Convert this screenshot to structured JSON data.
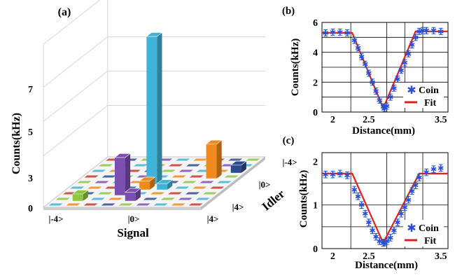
{
  "chart_data": [
    {
      "panel": "(a)",
      "type": "bar3d",
      "ylabel": "Counts(kHz)",
      "xlabel": "Signal",
      "zlabel": "Idler",
      "yticks": [
        "0",
        "3",
        "5",
        "7"
      ],
      "xticks": [
        "|-4>",
        "|0>",
        "|4>"
      ],
      "zticks": [
        "|-4>",
        "|0>",
        "|4>"
      ],
      "bars": [
        {
          "signal": 0,
          "idler": 0,
          "value": 8.6,
          "color": "#3fb3d8"
        },
        {
          "signal": -1,
          "idler": 2,
          "value": 2.2,
          "color": "#7a4fb0"
        },
        {
          "signal": 3,
          "idler": -1,
          "value": 2.0,
          "color": "#f08a1c"
        },
        {
          "signal": -3,
          "idler": 3,
          "value": 0.4,
          "color": "#8dc63f"
        },
        {
          "signal": 0,
          "idler": 3,
          "value": 0.5,
          "color": "#7a4fb0"
        },
        {
          "signal": 1,
          "idler": 1,
          "value": 0.35,
          "color": "#3fb3d8"
        },
        {
          "signal": 0,
          "idler": 1,
          "value": 0.5,
          "color": "#f08a1c"
        },
        {
          "signal": 4,
          "idler": -2,
          "value": 0.45,
          "color": "#2d4a8a"
        }
      ],
      "floor_colors": [
        "#c0392b",
        "#2d4a8a",
        "#8dc63f",
        "#7a4fb0",
        "#3fb3d8",
        "#f08a1c"
      ]
    },
    {
      "panel": "(b)",
      "type": "scatter",
      "xlabel": "Distance(mm)",
      "ylabel": "Counts(kHz)",
      "xlim": [
        1.85,
        3.6
      ],
      "ylim": [
        0,
        6
      ],
      "xticks": [
        "2",
        "2.5",
        "3.5"
      ],
      "yticks": [
        "0",
        "2",
        "4",
        "6"
      ],
      "legend": [
        "Coin",
        "Fit"
      ],
      "series": [
        {
          "name": "Coin",
          "x": [
            1.9,
            2.0,
            2.1,
            2.2,
            2.3,
            2.35,
            2.4,
            2.45,
            2.5,
            2.55,
            2.6,
            2.65,
            2.7,
            2.72,
            2.75,
            2.8,
            2.85,
            2.9,
            2.95,
            3.0,
            3.05,
            3.1,
            3.15,
            3.2,
            3.25,
            3.3,
            3.4,
            3.5
          ],
          "y": [
            5.3,
            5.35,
            5.35,
            5.3,
            4.8,
            4.3,
            3.7,
            3.2,
            2.6,
            2.0,
            1.4,
            0.8,
            0.35,
            0.25,
            0.4,
            1.0,
            1.6,
            2.2,
            2.8,
            3.3,
            3.9,
            4.5,
            5.0,
            5.4,
            5.45,
            5.45,
            5.45,
            5.4
          ]
        },
        {
          "name": "Fit",
          "x": [
            1.85,
            2.27,
            2.7,
            3.15,
            3.6
          ],
          "y": [
            5.3,
            5.3,
            0.25,
            5.4,
            5.4
          ]
        }
      ]
    },
    {
      "panel": "(c)",
      "type": "scatter",
      "xlabel": "Distance(mm)",
      "ylabel": "Counts(kHz)",
      "xlim": [
        1.85,
        3.6
      ],
      "ylim": [
        0,
        2.2
      ],
      "xticks": [
        "2",
        "2.5",
        "3.5"
      ],
      "yticks": [
        "0",
        "1",
        "2"
      ],
      "legend": [
        "Coin",
        "Fit"
      ],
      "series": [
        {
          "name": "Coin",
          "x": [
            1.9,
            2.0,
            2.1,
            2.2,
            2.3,
            2.35,
            2.4,
            2.45,
            2.5,
            2.55,
            2.6,
            2.65,
            2.7,
            2.72,
            2.75,
            2.8,
            2.85,
            2.9,
            2.95,
            3.0,
            3.05,
            3.1,
            3.15,
            3.2,
            3.3,
            3.4,
            3.5
          ],
          "y": [
            1.7,
            1.7,
            1.72,
            1.68,
            1.35,
            1.2,
            1.0,
            0.8,
            0.6,
            0.42,
            0.27,
            0.17,
            0.13,
            0.14,
            0.17,
            0.25,
            0.42,
            0.6,
            0.8,
            0.95,
            1.12,
            1.32,
            1.45,
            1.63,
            1.75,
            1.82,
            1.85
          ]
        },
        {
          "name": "Fit",
          "x": [
            1.85,
            2.27,
            2.7,
            3.2,
            3.6
          ],
          "y": [
            1.72,
            1.72,
            0.13,
            1.72,
            1.72
          ]
        }
      ]
    }
  ]
}
